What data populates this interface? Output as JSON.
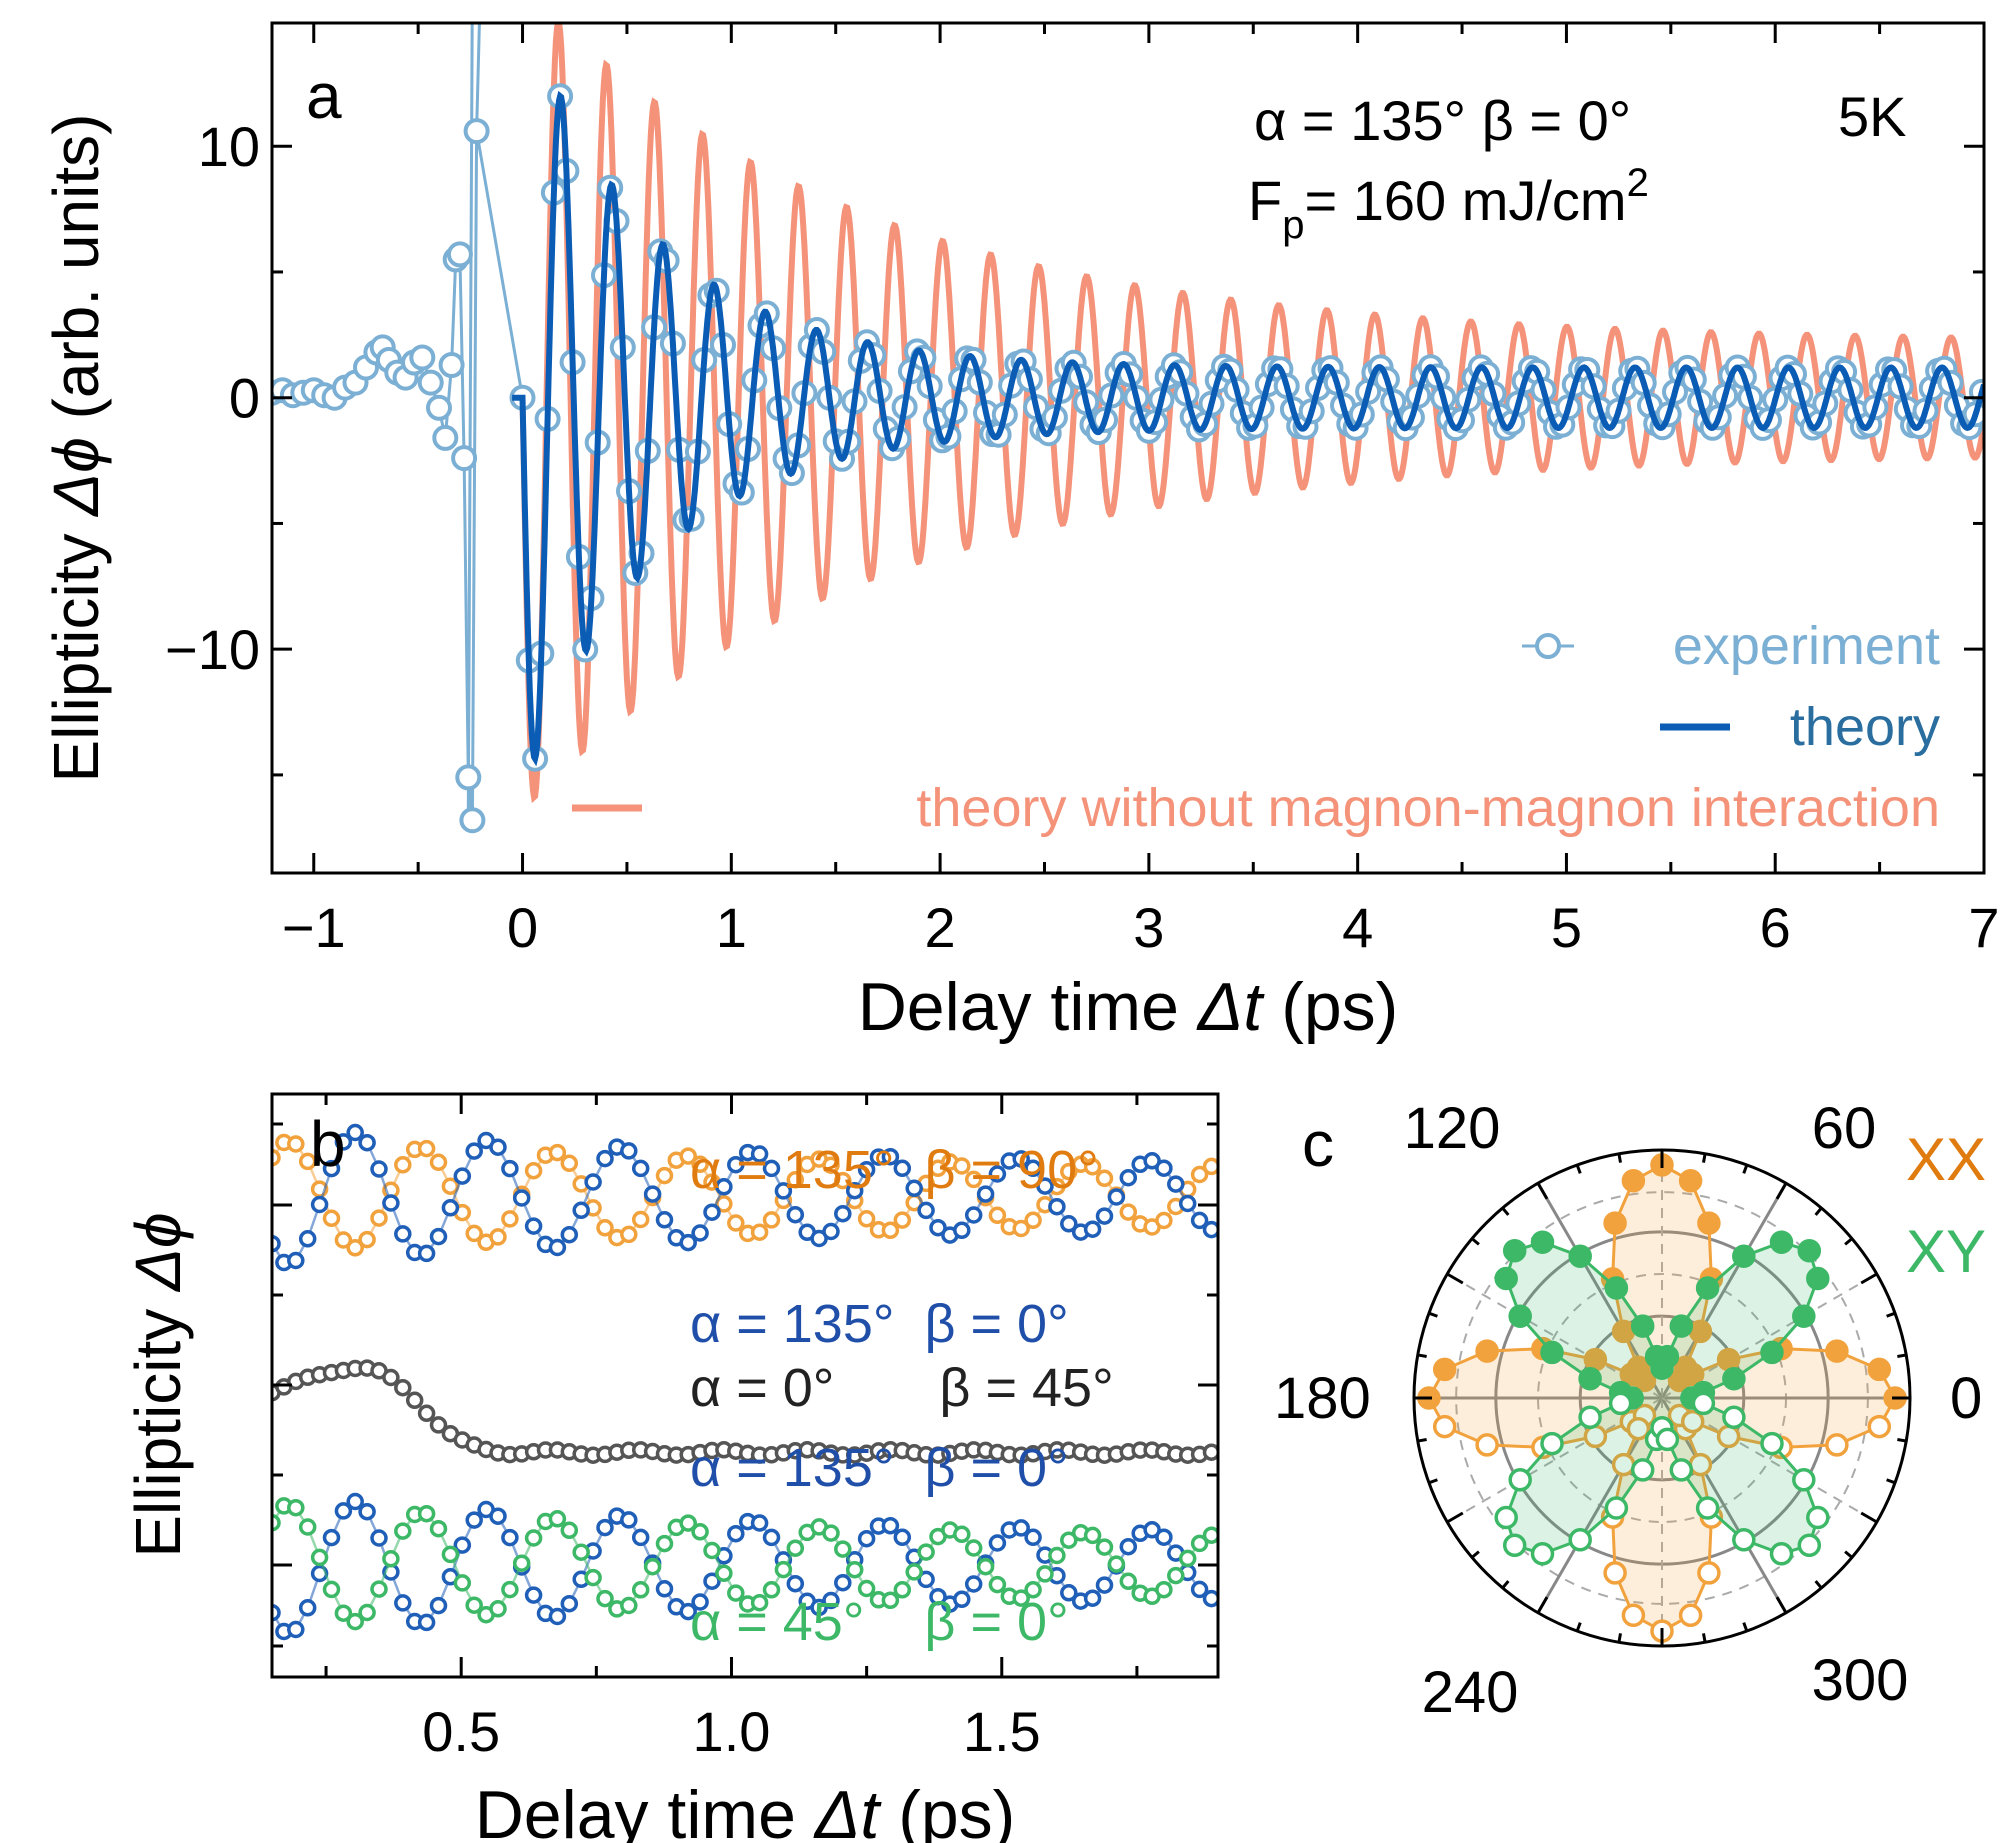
{
  "colors": {
    "experiment": "#7bafd4",
    "theory": "#0a5cb5",
    "theory_no_mm": "#f4937a",
    "orange": "#f2a23c",
    "orange_text": "#e07b10",
    "blue_b": "#1f5fb8",
    "grey": "#555555",
    "green": "#3cb867",
    "axis": "#000000"
  },
  "chart_data": [
    {
      "panel": "a",
      "type": "line",
      "label": "a",
      "xlabel_prefix": "Delay time ",
      "xlabel_symbol": "Δt",
      "xlabel_unit": " (ps)",
      "ylabel_prefix": "Ellipticity ",
      "ylabel_symbol": "Δϕ",
      "ylabel_unit": " (arb. units)",
      "xlim": [
        -1.2,
        7.0
      ],
      "ylim": [
        -18.9,
        14.9
      ],
      "xticks": [
        -1,
        0,
        1,
        2,
        3,
        4,
        5,
        6,
        7
      ],
      "xtick_labels": [
        "−1",
        "0",
        "1",
        "2",
        "3",
        "4",
        "5",
        "6",
        "7"
      ],
      "yticks": [
        -10,
        0,
        10
      ],
      "ytick_labels": [
        "−10",
        "0",
        "10"
      ],
      "annotation_line1": "α = 135° β = 0°",
      "annotation_temp": "5K",
      "annotation_line2_main": "F",
      "annotation_line2_sub": "p",
      "annotation_line2_rest": "= 160 mJ/cm",
      "annotation_line2_sup": "2",
      "legend": [
        "experiment",
        "theory",
        "theory without magnon-magnon interaction"
      ],
      "series": [
        {
          "name": "experiment",
          "pre_pulse": {
            "x": [
              -1.2,
              -1.15,
              -1.1,
              -1.05,
              -1.0,
              -0.95,
              -0.9,
              -0.85,
              -0.8,
              -0.75,
              -0.7,
              -0.67,
              -0.64,
              -0.6,
              -0.56,
              -0.52,
              -0.48,
              -0.44,
              -0.4,
              -0.37,
              -0.34,
              -0.32,
              -0.3,
              -0.28,
              -0.26,
              -0.24,
              -0.22
            ],
            "y": [
              0.2,
              0.3,
              0.1,
              0.2,
              0.3,
              0.1,
              0.0,
              0.4,
              0.6,
              1.2,
              1.8,
              2.0,
              1.5,
              1.0,
              0.8,
              1.4,
              1.6,
              0.6,
              -0.4,
              -1.6,
              1.3,
              5.5,
              5.7,
              -2.4,
              -15.1,
              -16.8,
              10.6
            ]
          },
          "oscillation": {
            "start": 0.0,
            "end": 7.0,
            "step": 0.03,
            "amplitude": 14.5,
            "decay_time": 0.62,
            "floor": 1.2,
            "period": 0.245,
            "phase": 0.13
          }
        },
        {
          "name": "theory",
          "oscillation": {
            "start": -0.05,
            "end": 7.0,
            "step": 0.005,
            "amplitude": 14.5,
            "decay_time": 0.62,
            "floor": 1.2,
            "period": 0.245,
            "phase": 0.13
          }
        },
        {
          "name": "theory without magnon-magnon interaction",
          "oscillation": {
            "start": 0.0,
            "end": 7.0,
            "step": 0.005,
            "amplitude": 14.2,
            "decay_time": 1.6,
            "floor": 2.2,
            "period": 0.23,
            "phase": 0.13
          }
        }
      ]
    },
    {
      "panel": "b",
      "type": "scatter",
      "label": "b",
      "xlabel_prefix": "Delay time ",
      "xlabel_symbol": "Δt",
      "xlabel_unit": " (ps)",
      "ylabel_prefix": "Ellipticity ",
      "ylabel_symbol": "Δϕ",
      "xlim": [
        0.15,
        1.9
      ],
      "xticks": [
        0.5,
        1.0,
        1.5
      ],
      "xtick_labels": [
        "0.5",
        "1.0",
        "1.5"
      ],
      "series": [
        {
          "name": "α = 135°  β = 90°",
          "color_key": "orange",
          "offset": 2.1,
          "amp": 0.42,
          "decay": 1.2,
          "floor": 0.25,
          "period": 0.245,
          "phase": 0.05,
          "sign": -1,
          "baseline": 0.0
        },
        {
          "name": "α = 135°  β = 0°",
          "color_key": "blue_b",
          "offset": 2.1,
          "amp": 0.55,
          "decay": 1.0,
          "floor": 0.3,
          "period": 0.245,
          "phase": 0.05,
          "sign": 1,
          "baseline": 0.0
        },
        {
          "name": "α = 0°       β = 45°",
          "color_key": "grey",
          "offset": 0.0,
          "amp": 0.0,
          "decay": 1.0,
          "floor": 0.0,
          "period": 0.245,
          "phase": 0.0,
          "sign": 1,
          "baseline": 1.0
        },
        {
          "name": "α = 135°  β = 0°",
          "color_key": "blue_b",
          "offset": -2.0,
          "amp": 0.55,
          "decay": 1.0,
          "floor": 0.3,
          "period": 0.245,
          "phase": 0.05,
          "sign": 1,
          "baseline": 0.0
        },
        {
          "name": "α = 45°    β = 0°",
          "color_key": "green",
          "offset": -2.0,
          "amp": 0.5,
          "decay": 1.1,
          "floor": 0.25,
          "period": 0.245,
          "phase": 0.05,
          "sign": -1,
          "baseline": 0.0
        }
      ]
    },
    {
      "panel": "c",
      "type": "polar",
      "label": "c",
      "angle_labels": [
        "0",
        "60",
        "120",
        "180",
        "240",
        "300"
      ],
      "angles_deg": [
        0,
        60,
        120,
        180,
        240,
        300
      ],
      "legend": [
        "XX",
        "XY"
      ],
      "series": [
        {
          "name": "XX",
          "color_key": "orange",
          "pattern": "cos2"
        },
        {
          "name": "XY",
          "color_key": "green",
          "pattern": "sin2"
        }
      ]
    }
  ]
}
